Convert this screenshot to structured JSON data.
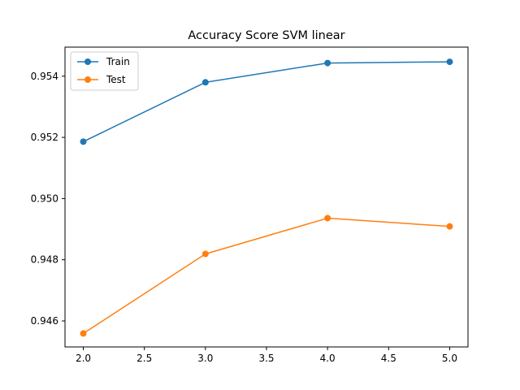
{
  "chart_data": {
    "type": "line",
    "title": "Accuracy Score SVM linear",
    "xlabel": "",
    "ylabel": "",
    "x": [
      2.0,
      3.0,
      4.0,
      5.0
    ],
    "xlim": [
      1.85,
      5.15
    ],
    "ylim": [
      0.94515,
      0.95495
    ],
    "xticks": [
      "2.0",
      "2.5",
      "3.0",
      "3.5",
      "4.0",
      "4.5",
      "5.0"
    ],
    "yticks": [
      "0.946",
      "0.948",
      "0.950",
      "0.952",
      "0.954"
    ],
    "grid": false,
    "legend_position": "upper-left",
    "series": [
      {
        "name": "Train",
        "color": "#1f77b4",
        "marker": "circle",
        "values": [
          0.95186,
          0.9538,
          0.95443,
          0.95447
        ]
      },
      {
        "name": "Test",
        "color": "#ff7f0e",
        "marker": "circle",
        "values": [
          0.94559,
          0.94819,
          0.94936,
          0.94909
        ]
      }
    ]
  }
}
